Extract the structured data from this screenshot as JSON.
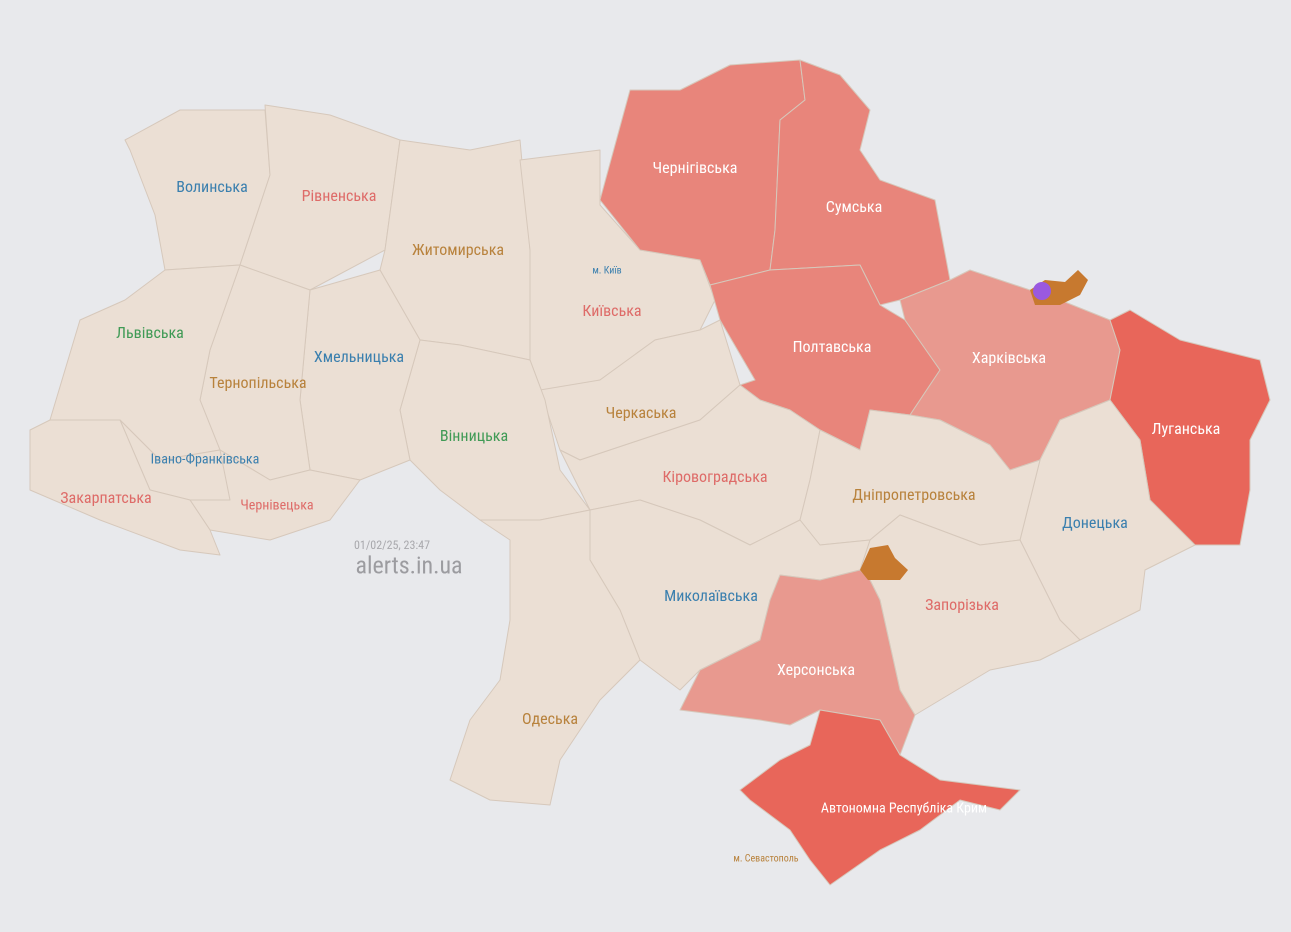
{
  "timestamp": "01/02/25, 23:47",
  "site": "alerts.in.ua",
  "regions": [
    "Волинська",
    "Рівненська",
    "Житомирська",
    "Київська",
    "Чернігівська",
    "Сумська",
    "Полтавська",
    "Харківська",
    "Луганська",
    "Донецька",
    "Дніпропетровська",
    "Запорізька",
    "Херсонська",
    "Автономна Республіка Крим",
    "Миколаївська",
    "Кіровоградська",
    "Черкаська",
    "Вінницька",
    "Одеська",
    "Хмельницька",
    "Тернопільська",
    "Львівська",
    "Івано-Франківська",
    "Чернівецька",
    "Закарпатська"
  ],
  "cities": [
    "м. Київ",
    "м. Севастополь"
  ]
}
